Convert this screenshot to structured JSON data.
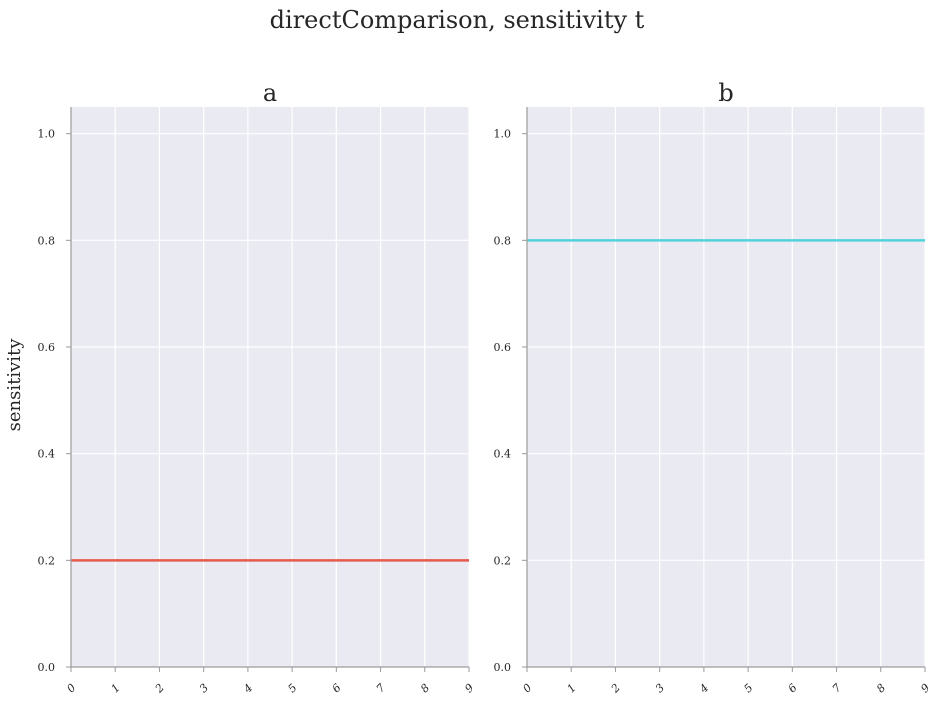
{
  "figure": {
    "title": "directComparison, sensitivity t",
    "background": "#ffffff",
    "axes_facecolor": "#eaeaf2",
    "grid_color": "#ffffff",
    "spine_color": "#9a9a9a"
  },
  "chart_data": [
    {
      "type": "line",
      "title": "a",
      "xlabel": "",
      "ylabel": "sensitivity",
      "xlim": [
        0,
        9
      ],
      "ylim": [
        0,
        1.05
      ],
      "xticks": [
        0,
        1,
        2,
        3,
        4,
        5,
        6,
        7,
        8,
        9
      ],
      "yticks": [
        0.0,
        0.2,
        0.4,
        0.6,
        0.8,
        1.0
      ],
      "xtick_labels": [
        "0",
        "1",
        "2",
        "3",
        "4",
        "5",
        "6",
        "7",
        "8",
        "9"
      ],
      "ytick_labels": [
        "0.0",
        "0.2",
        "0.4",
        "0.6",
        "0.8",
        "1.0"
      ],
      "grid": true,
      "series": [
        {
          "color": "#e8584b",
          "x": [
            0,
            1,
            2,
            3,
            4,
            5,
            6,
            7,
            8,
            9
          ],
          "y": [
            0.2,
            0.2,
            0.2,
            0.2,
            0.2,
            0.2,
            0.2,
            0.2,
            0.2,
            0.2
          ]
        }
      ]
    },
    {
      "type": "line",
      "title": "b",
      "xlabel": "",
      "ylabel": "",
      "xlim": [
        0,
        9
      ],
      "ylim": [
        0,
        1.05
      ],
      "xticks": [
        0,
        1,
        2,
        3,
        4,
        5,
        6,
        7,
        8,
        9
      ],
      "yticks": [
        0.0,
        0.2,
        0.4,
        0.6,
        0.8,
        1.0
      ],
      "xtick_labels": [
        "0",
        "1",
        "2",
        "3",
        "4",
        "5",
        "6",
        "7",
        "8",
        "9"
      ],
      "ytick_labels": [
        "0.0",
        "0.2",
        "0.4",
        "0.6",
        "0.8",
        "1.0"
      ],
      "grid": true,
      "series": [
        {
          "color": "#4fd2dc",
          "x": [
            0,
            1,
            2,
            3,
            4,
            5,
            6,
            7,
            8,
            9
          ],
          "y": [
            0.8,
            0.8,
            0.8,
            0.8,
            0.8,
            0.8,
            0.8,
            0.8,
            0.8,
            0.8
          ]
        }
      ]
    }
  ]
}
